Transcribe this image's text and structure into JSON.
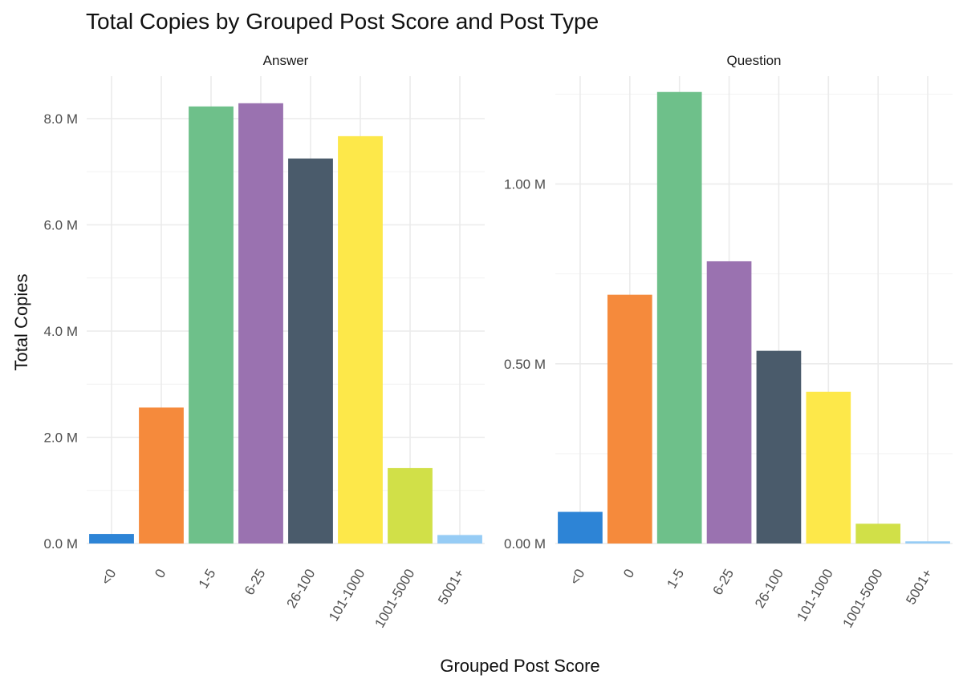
{
  "chart_data": {
    "type": "bar",
    "title": "Total Copies by Grouped Post Score and Post Type",
    "xlabel": "Grouped Post Score",
    "ylabel": "Total Copies",
    "categories": [
      "<0",
      "0",
      "1-5",
      "6-25",
      "26-100",
      "101-1000",
      "1001-5000",
      "5001+"
    ],
    "colors": [
      "#2d84d6",
      "#f58a3c",
      "#6ec08a",
      "#9a72b0",
      "#4a5b6b",
      "#fde84a",
      "#d1e048",
      "#96ccf5"
    ],
    "panels": [
      {
        "label": "Answer",
        "ylim": [
          0,
          8800000
        ],
        "yticks": [
          0,
          2000000,
          4000000,
          6000000,
          8000000
        ],
        "ytick_labels": [
          "0.0 M",
          "2.0 M",
          "4.0 M",
          "6.0 M",
          "8.0 M"
        ],
        "values": [
          180000,
          2560000,
          8230000,
          8290000,
          7250000,
          7670000,
          1420000,
          160000
        ]
      },
      {
        "label": "Question",
        "ylim": [
          0,
          1300000
        ],
        "yticks": [
          0,
          500000,
          1000000
        ],
        "ytick_labels": [
          "0.00 M",
          "0.50 M",
          "1.00 M"
        ],
        "values": [
          88000,
          692000,
          1256000,
          785000,
          536000,
          422000,
          55000,
          6000
        ]
      }
    ]
  }
}
